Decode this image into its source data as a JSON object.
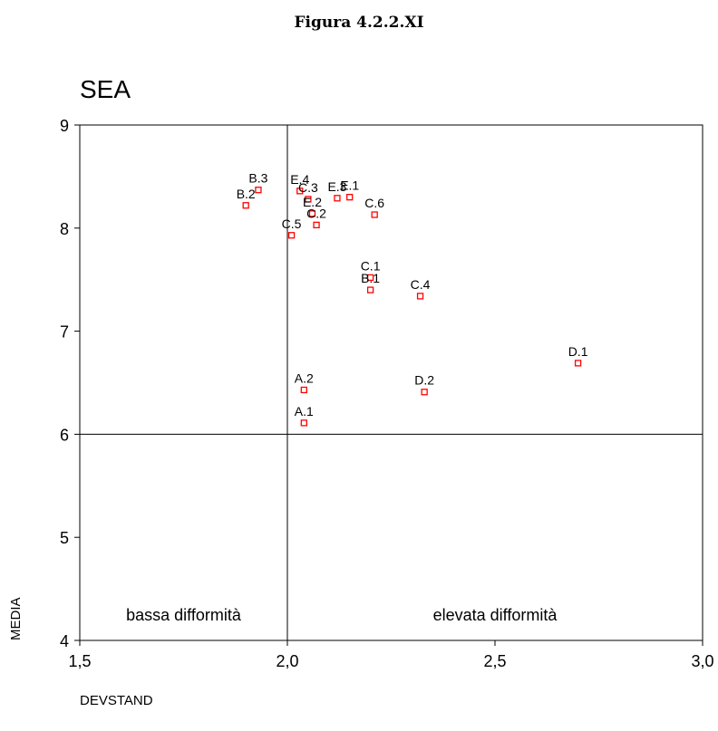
{
  "figure_caption": "Figura 4.2.2.XI",
  "chart_data": {
    "type": "scatter",
    "title": "SEA",
    "xlabel": "DEVSTAND",
    "ylabel": "MEDIA",
    "xlim": [
      1.5,
      3.0
    ],
    "ylim": [
      4,
      9
    ],
    "x_ticks": [
      1.5,
      2.0,
      2.5,
      3.0
    ],
    "x_tick_labels": [
      "1,5",
      "2,0",
      "2,5",
      "3,0"
    ],
    "y_ticks": [
      4,
      5,
      6,
      7,
      8,
      9
    ],
    "y_tick_labels": [
      "4",
      "5",
      "6",
      "7",
      "8",
      "9"
    ],
    "reference_lines": {
      "x": 2.0,
      "y": 6.0
    },
    "region_labels": {
      "left": "bassa difformità",
      "right": "elevata difformità"
    },
    "marker_color": "#ff0000",
    "points": [
      {
        "label": "B.3",
        "x": 1.93,
        "y": 8.37
      },
      {
        "label": "B.2",
        "x": 1.9,
        "y": 8.22
      },
      {
        "label": "E.4",
        "x": 2.03,
        "y": 8.36
      },
      {
        "label": "C.3",
        "x": 2.05,
        "y": 8.28
      },
      {
        "label": "E.2",
        "x": 2.06,
        "y": 8.14
      },
      {
        "label": "C.2",
        "x": 2.07,
        "y": 8.03
      },
      {
        "label": "E.3",
        "x": 2.12,
        "y": 8.29
      },
      {
        "label": "E.1",
        "x": 2.15,
        "y": 8.3
      },
      {
        "label": "C.6",
        "x": 2.21,
        "y": 8.13
      },
      {
        "label": "C.5",
        "x": 2.01,
        "y": 7.93
      },
      {
        "label": "C.1",
        "x": 2.2,
        "y": 7.52
      },
      {
        "label": "B.1",
        "x": 2.2,
        "y": 7.4
      },
      {
        "label": "C.4",
        "x": 2.32,
        "y": 7.34
      },
      {
        "label": "D.1",
        "x": 2.7,
        "y": 6.69
      },
      {
        "label": "A.2",
        "x": 2.04,
        "y": 6.43
      },
      {
        "label": "D.2",
        "x": 2.33,
        "y": 6.41
      },
      {
        "label": "A.1",
        "x": 2.04,
        "y": 6.11
      }
    ]
  }
}
